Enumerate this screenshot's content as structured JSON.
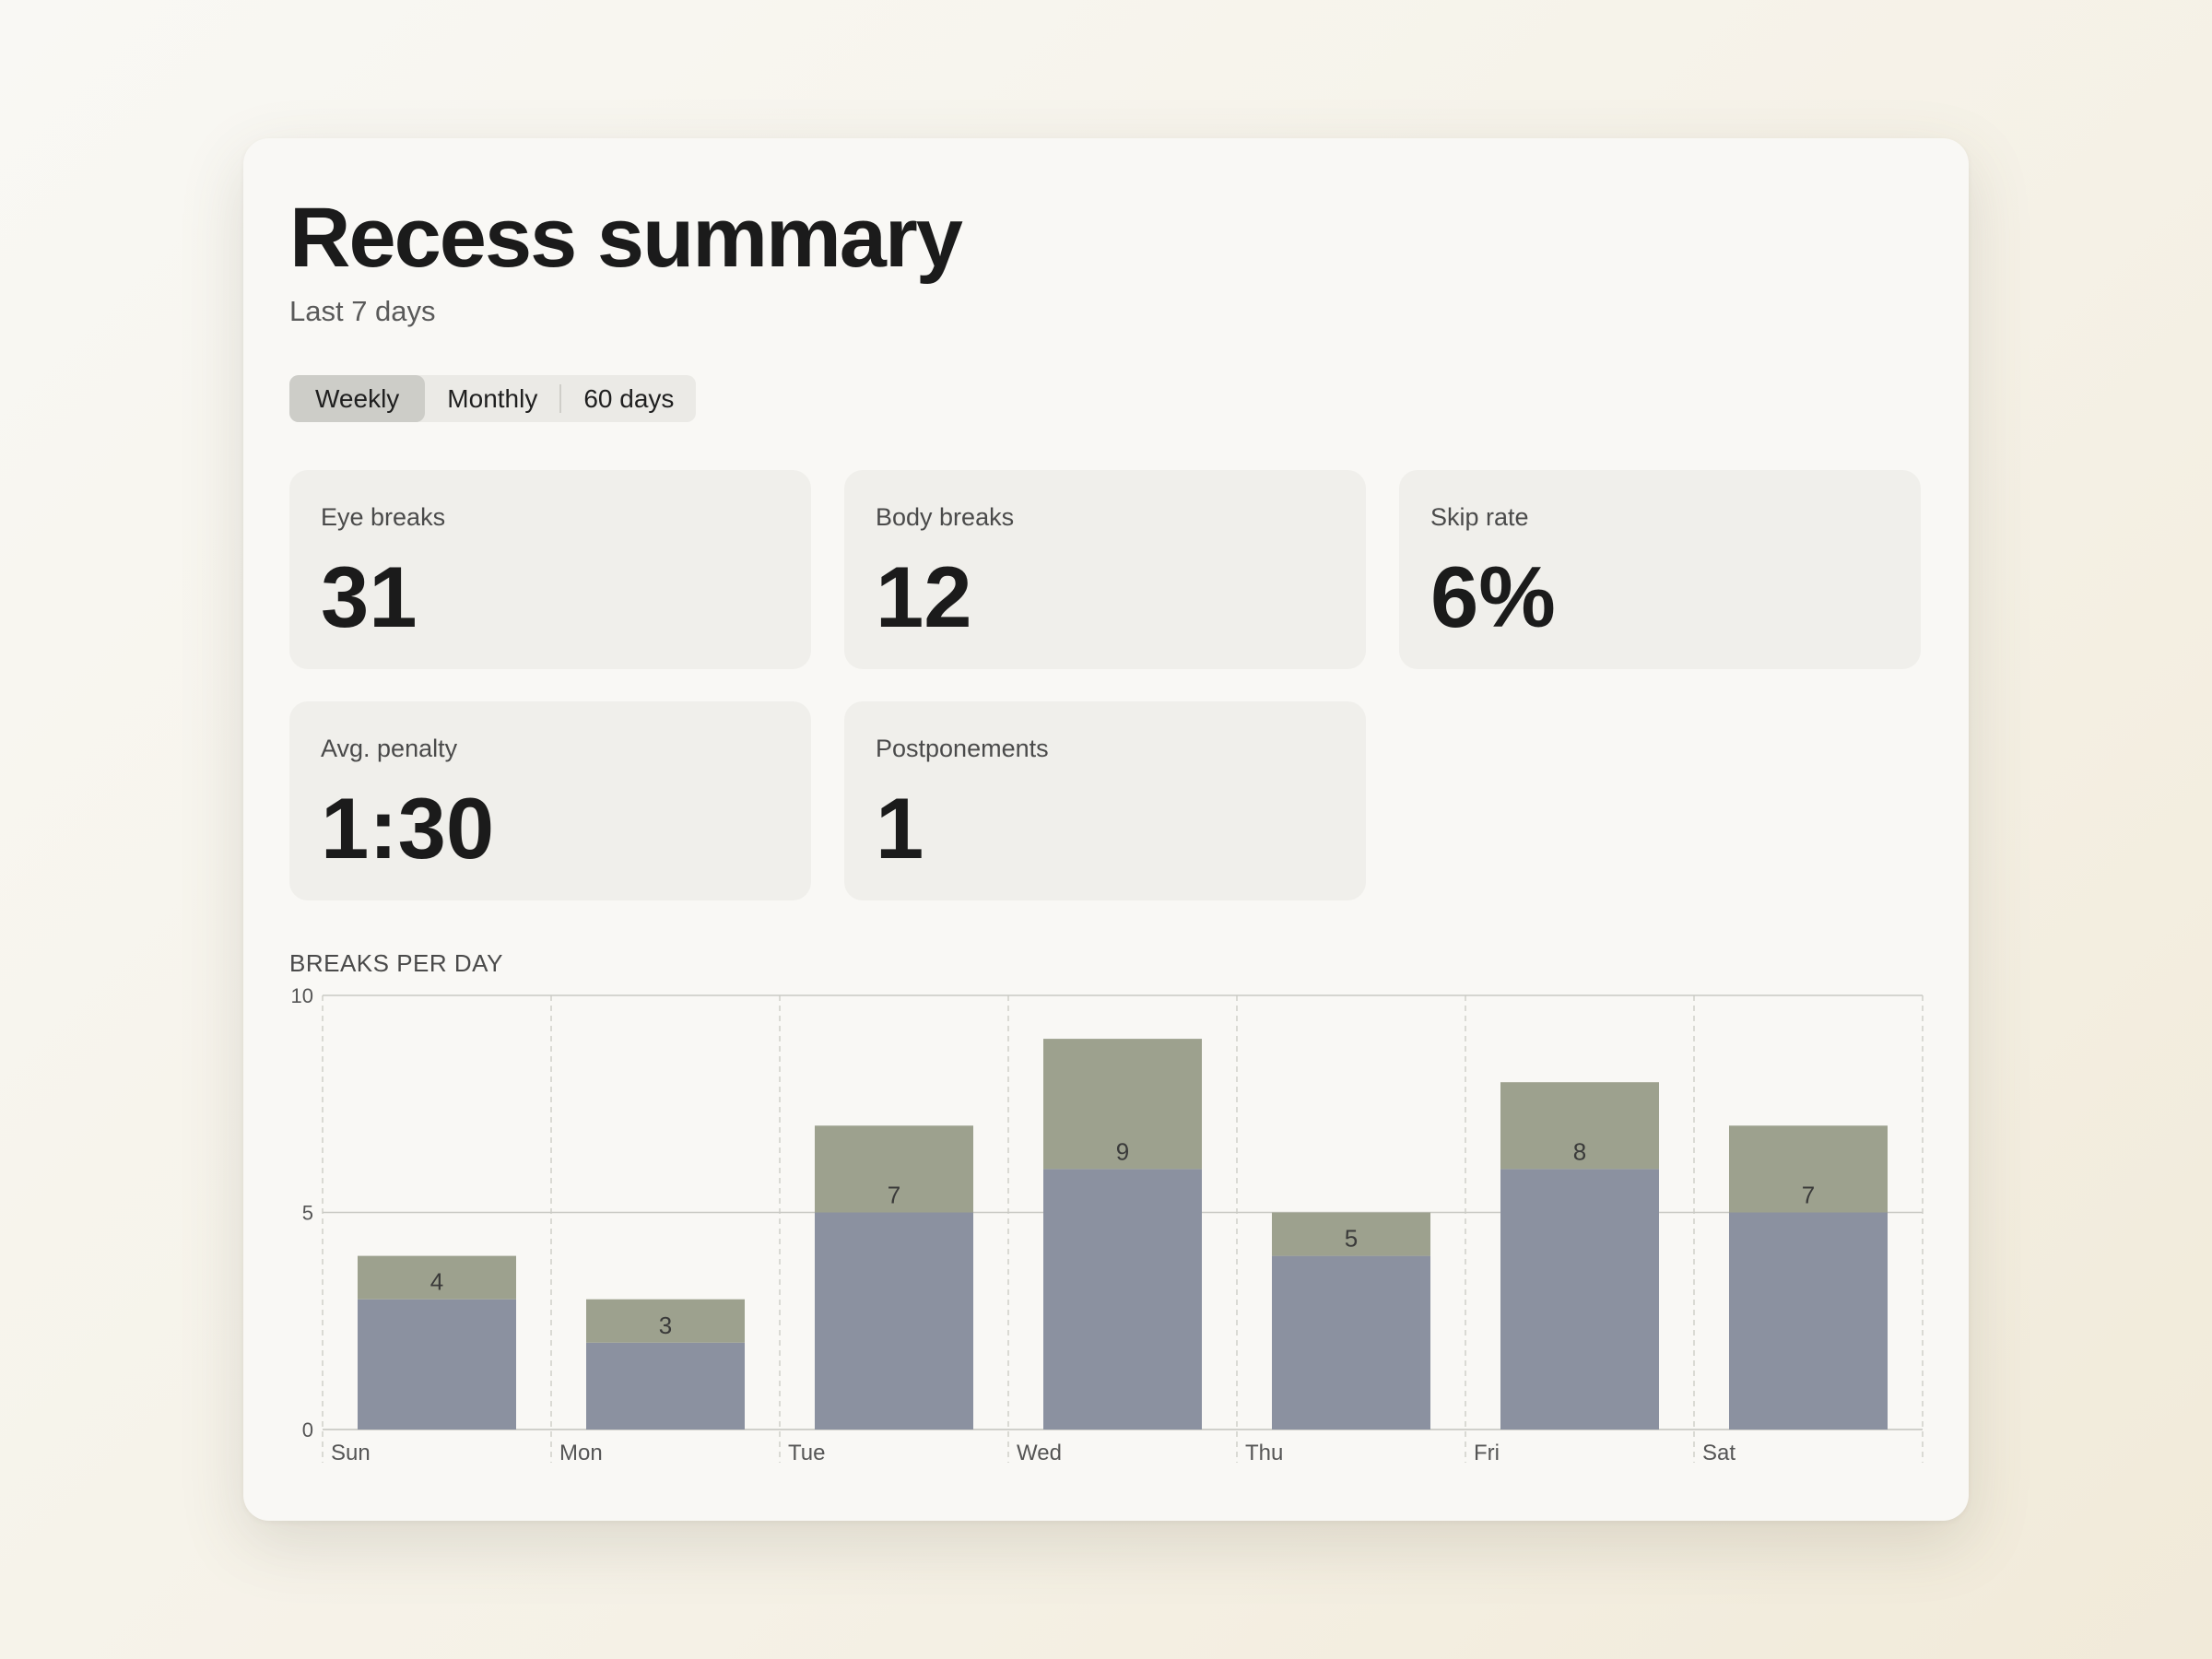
{
  "header": {
    "title": "Recess summary",
    "subtitle": "Last 7 days"
  },
  "range_tabs": [
    {
      "label": "Weekly",
      "selected": true
    },
    {
      "label": "Monthly",
      "selected": false
    },
    {
      "label": "60 days",
      "selected": false
    }
  ],
  "stats": [
    {
      "label": "Eye breaks",
      "value": "31"
    },
    {
      "label": "Body breaks",
      "value": "12"
    },
    {
      "label": "Skip rate",
      "value": "6%"
    },
    {
      "label": "Avg. penalty",
      "value": "1:30"
    },
    {
      "label": "Postponements",
      "value": "1"
    }
  ],
  "chart_title": "BREAKS PER DAY",
  "colors": {
    "bottom_segment": "#8b91a0",
    "top_segment": "#9da18e",
    "card_background": "#f9f8f5",
    "stat_background": "#f0efeb"
  },
  "chart_data": {
    "type": "bar",
    "stacked": true,
    "categories": [
      "Sun",
      "Mon",
      "Tue",
      "Wed",
      "Thu",
      "Fri",
      "Sat"
    ],
    "series": [
      {
        "values": [
          3,
          2,
          5,
          6,
          4,
          6,
          5
        ]
      },
      {
        "values": [
          1,
          1,
          2,
          3,
          1,
          2,
          2
        ]
      }
    ],
    "totals": [
      4,
      3,
      7,
      9,
      5,
      8,
      7
    ],
    "ylim": [
      0,
      10
    ],
    "yticks": [
      0,
      5,
      10
    ],
    "grid": true
  }
}
